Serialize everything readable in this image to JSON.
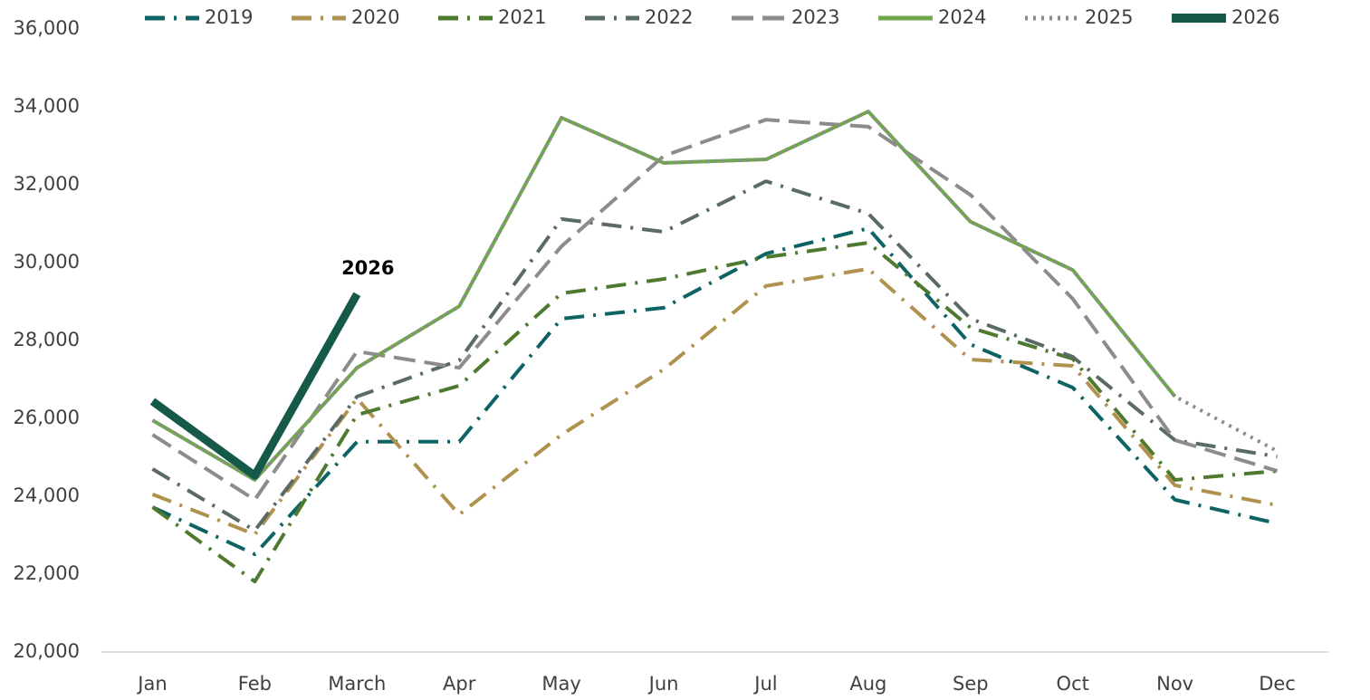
{
  "chart_data": {
    "type": "line",
    "categories": [
      "Jan",
      "Feb",
      "March",
      "Apr",
      "May",
      "Jun",
      "Jul",
      "Aug",
      "Sep",
      "Oct",
      "Nov",
      "Dec"
    ],
    "series": [
      {
        "name": "2019",
        "color": "#0e6464",
        "style": "dash-dot",
        "values": [
          23720,
          22510,
          25400,
          25400,
          28560,
          28840,
          30230,
          30880,
          27900,
          26790,
          23910,
          23300
        ]
      },
      {
        "name": "2020",
        "color": "#b0924f",
        "style": "dash-dot",
        "values": [
          24050,
          23020,
          26510,
          23530,
          25580,
          27260,
          29400,
          29840,
          27510,
          27350,
          24280,
          23770
        ]
      },
      {
        "name": "2021",
        "color": "#4e7a2f",
        "style": "dash-dot",
        "values": [
          23720,
          21810,
          26090,
          26840,
          29210,
          29580,
          30140,
          30510,
          28330,
          27530,
          24420,
          24650
        ]
      },
      {
        "name": "2022",
        "color": "#5a6b66",
        "style": "dash-dot",
        "values": [
          24700,
          23120,
          26560,
          27490,
          31120,
          30790,
          32090,
          31260,
          28560,
          27580,
          25440,
          25020
        ]
      },
      {
        "name": "2023",
        "color": "#8c8c8c",
        "style": "dash",
        "values": [
          25580,
          23910,
          27720,
          27300,
          30420,
          32740,
          33670,
          33490,
          31740,
          29070,
          25440,
          24650
        ]
      },
      {
        "name": "2024",
        "color": "#6fa84a",
        "style": "solid",
        "values": [
          25950,
          24420,
          27300,
          28880,
          33720,
          32560,
          32650,
          33880,
          31050,
          29810,
          26560,
          null
        ]
      },
      {
        "name": "2025",
        "color": "#8c8c8c",
        "style": "dot",
        "values": [
          25950,
          24420,
          27300,
          28880,
          33720,
          32560,
          32650,
          33880,
          31050,
          29810,
          26560,
          25160
        ]
      },
      {
        "name": "2026",
        "color": "#155a48",
        "style": "thick",
        "values": [
          26440,
          24530,
          29190,
          null,
          null,
          null,
          null,
          null,
          null,
          null,
          null,
          null
        ]
      }
    ],
    "annotation": "2026",
    "ylim": [
      20000,
      36000
    ],
    "yticks": [
      {
        "value": 20000,
        "label": "20,000"
      },
      {
        "value": 22000,
        "label": "22,000"
      },
      {
        "value": 24000,
        "label": "24,000"
      },
      {
        "value": 26000,
        "label": "26,000"
      },
      {
        "value": 28000,
        "label": "28,000"
      },
      {
        "value": 30000,
        "label": "30,000"
      },
      {
        "value": 32000,
        "label": "32,000"
      },
      {
        "value": 34000,
        "label": "34,000"
      },
      {
        "value": 36000,
        "label": "36,000"
      }
    ],
    "legend": "top"
  }
}
